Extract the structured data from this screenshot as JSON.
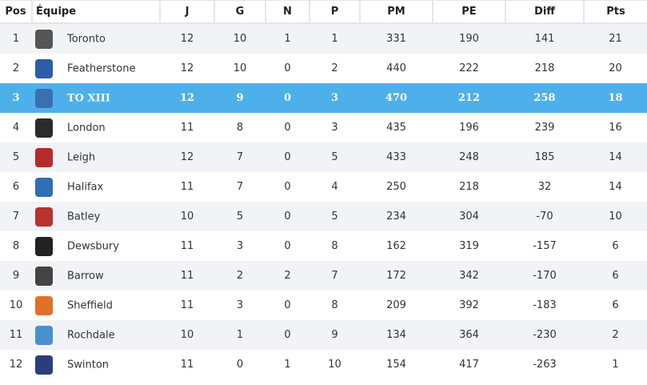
{
  "headers": {
    "pos": "Pos",
    "team": "Équipe",
    "j": "J",
    "g": "G",
    "n": "N",
    "p": "P",
    "pm": "PM",
    "pe": "PE",
    "diff": "Diff",
    "pts": "Pts"
  },
  "highlight_color": "#4db0ea",
  "rows": [
    {
      "pos": "1",
      "team": "Toronto",
      "logo": "toronto-logo",
      "color": "#555555",
      "j": "12",
      "g": "10",
      "n": "1",
      "p": "1",
      "pm": "331",
      "pe": "190",
      "diff": "141",
      "pts": "21"
    },
    {
      "pos": "2",
      "team": "Featherstone",
      "logo": "featherstone-logo",
      "color": "#2a5ea8",
      "j": "12",
      "g": "10",
      "n": "0",
      "p": "2",
      "pm": "440",
      "pe": "222",
      "diff": "218",
      "pts": "20"
    },
    {
      "pos": "3",
      "team": "TO XIII",
      "logo": "toulouse-logo",
      "color": "#3a6fb0",
      "j": "12",
      "g": "9",
      "n": "0",
      "p": "3",
      "pm": "470",
      "pe": "212",
      "diff": "258",
      "pts": "18"
    },
    {
      "pos": "4",
      "team": "London",
      "logo": "london-logo",
      "color": "#2b2b2b",
      "j": "11",
      "g": "8",
      "n": "0",
      "p": "3",
      "pm": "435",
      "pe": "196",
      "diff": "239",
      "pts": "16"
    },
    {
      "pos": "5",
      "team": "Leigh",
      "logo": "leigh-logo",
      "color": "#b52a2a",
      "j": "12",
      "g": "7",
      "n": "0",
      "p": "5",
      "pm": "433",
      "pe": "248",
      "diff": "185",
      "pts": "14"
    },
    {
      "pos": "6",
      "team": "Halifax",
      "logo": "halifax-logo",
      "color": "#2f6fb5",
      "j": "11",
      "g": "7",
      "n": "0",
      "p": "4",
      "pm": "250",
      "pe": "218",
      "diff": "32",
      "pts": "14"
    },
    {
      "pos": "7",
      "team": "Batley",
      "logo": "batley-logo",
      "color": "#b8322e",
      "j": "10",
      "g": "5",
      "n": "0",
      "p": "5",
      "pm": "234",
      "pe": "304",
      "diff": "-70",
      "pts": "10"
    },
    {
      "pos": "8",
      "team": "Dewsbury",
      "logo": "dewsbury-logo",
      "color": "#222222",
      "j": "11",
      "g": "3",
      "n": "0",
      "p": "8",
      "pm": "162",
      "pe": "319",
      "diff": "-157",
      "pts": "6"
    },
    {
      "pos": "9",
      "team": "Barrow",
      "logo": "barrow-logo",
      "color": "#444444",
      "j": "11",
      "g": "2",
      "n": "2",
      "p": "7",
      "pm": "172",
      "pe": "342",
      "diff": "-170",
      "pts": "6"
    },
    {
      "pos": "10",
      "team": "Sheffield",
      "logo": "sheffield-logo",
      "color": "#e0702a",
      "j": "11",
      "g": "3",
      "n": "0",
      "p": "8",
      "pm": "209",
      "pe": "392",
      "diff": "-183",
      "pts": "6"
    },
    {
      "pos": "11",
      "team": "Rochdale",
      "logo": "rochdale-logo",
      "color": "#4a8fd0",
      "j": "10",
      "g": "1",
      "n": "0",
      "p": "9",
      "pm": "134",
      "pe": "364",
      "diff": "-230",
      "pts": "2"
    },
    {
      "pos": "12",
      "team": "Swinton",
      "logo": "swinton-logo",
      "color": "#2a3f7a",
      "j": "11",
      "g": "0",
      "n": "1",
      "p": "10",
      "pm": "154",
      "pe": "417",
      "diff": "-263",
      "pts": "1"
    }
  ]
}
